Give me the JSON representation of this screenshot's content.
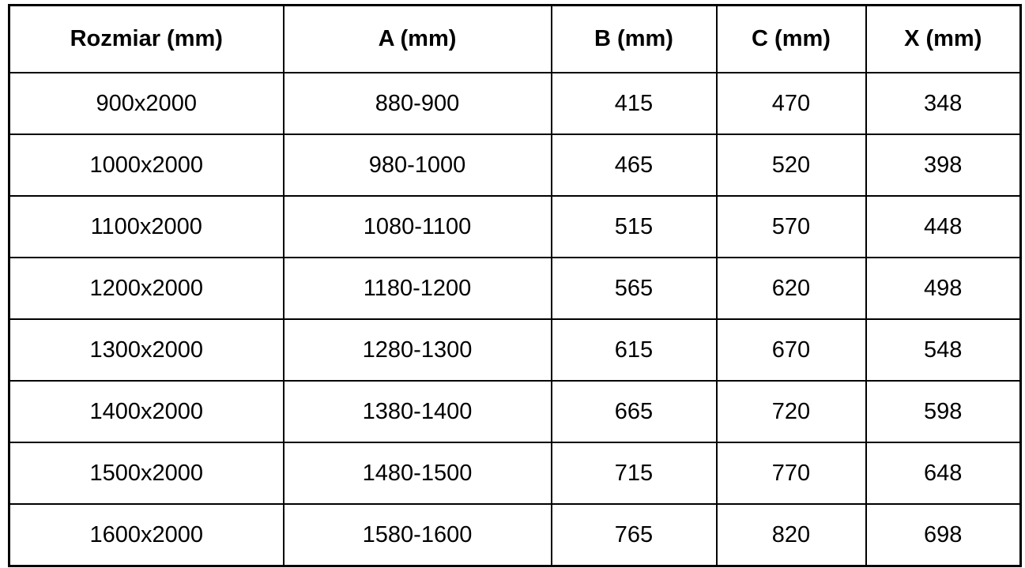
{
  "table": {
    "headers": [
      "Rozmiar (mm)",
      "A (mm)",
      "B (mm)",
      "C (mm)",
      "X (mm)"
    ],
    "rows": [
      [
        "900x2000",
        "880-900",
        "415",
        "470",
        "348"
      ],
      [
        "1000x2000",
        "980-1000",
        "465",
        "520",
        "398"
      ],
      [
        "1100x2000",
        "1080-1100",
        "515",
        "570",
        "448"
      ],
      [
        "1200x2000",
        "1180-1200",
        "565",
        "620",
        "498"
      ],
      [
        "1300x2000",
        "1280-1300",
        "615",
        "670",
        "548"
      ],
      [
        "1400x2000",
        "1380-1400",
        "665",
        "720",
        "598"
      ],
      [
        "1500x2000",
        "1480-1500",
        "715",
        "770",
        "648"
      ],
      [
        "1600x2000",
        "1580-1600",
        "765",
        "820",
        "698"
      ]
    ]
  },
  "chart_data": {
    "type": "table",
    "title": "",
    "columns": [
      "Rozmiar (mm)",
      "A (mm)",
      "B (mm)",
      "C (mm)",
      "X (mm)"
    ],
    "rows": [
      [
        "900x2000",
        "880-900",
        415,
        470,
        348
      ],
      [
        "1000x2000",
        "980-1000",
        465,
        520,
        398
      ],
      [
        "1100x2000",
        "1080-1100",
        515,
        570,
        448
      ],
      [
        "1200x2000",
        "1180-1200",
        565,
        620,
        498
      ],
      [
        "1300x2000",
        "1280-1300",
        615,
        670,
        548
      ],
      [
        "1400x2000",
        "1380-1400",
        665,
        720,
        598
      ],
      [
        "1500x2000",
        "1480-1500",
        715,
        770,
        648
      ],
      [
        "1600x2000",
        "1580-1600",
        765,
        820,
        698
      ]
    ]
  },
  "colors": {
    "border": "#000000",
    "background": "#ffffff",
    "text": "#000000"
  }
}
